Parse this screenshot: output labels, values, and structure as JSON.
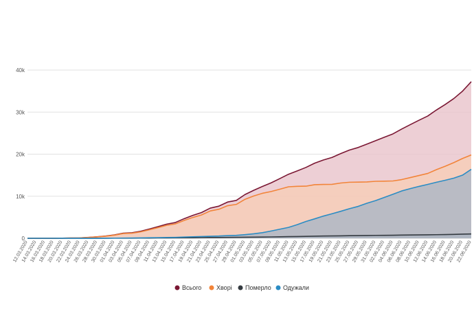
{
  "chart_data": {
    "type": "area",
    "title": "",
    "xlabel": "",
    "ylabel": "",
    "ylim": [
      0,
      40000
    ],
    "yticks": [
      {
        "value": 0,
        "label": "0"
      },
      {
        "value": 10000,
        "label": "10k"
      },
      {
        "value": 20000,
        "label": "20k"
      },
      {
        "value": 30000,
        "label": "30k"
      },
      {
        "value": 40000,
        "label": "40k"
      }
    ],
    "grid": true,
    "legend_position": "bottom-center",
    "x": [
      "12.03.2020",
      "14.03.2020",
      "16.03.2020",
      "18.03.2020",
      "20.03.2020",
      "22.03.2020",
      "24.03.2020",
      "26.03.2020",
      "28.03.2020",
      "30.03.2020",
      "01.04.2020",
      "03.04.2020",
      "05.04.2020",
      "07.04.2020",
      "09.04.2020",
      "11.04.2020",
      "13.04.2020",
      "15.04.2020",
      "17.04.2020",
      "19.04.2020",
      "21.04.2020",
      "23.04.2020",
      "25.04.2020",
      "27.04.2020",
      "29.04.2020",
      "01.05.2020",
      "03.05.2020",
      "05.05.2020",
      "07.05.2020",
      "09.05.2020",
      "11.05.2020",
      "13.05.2020",
      "15.05.2020",
      "17.05.2020",
      "19.05.2020",
      "21.05.2020",
      "23.05.2020",
      "25.05.2020",
      "27.05.2020",
      "29.05.2020",
      "31.05.2020",
      "02.06.2020",
      "04.06.2020",
      "06.06.2020",
      "08.06.2020",
      "10.06.2020",
      "12.06.2020",
      "14.06.2020",
      "16.06.2020",
      "18.06.2020",
      "20.06.2020",
      "22.06.2020"
    ],
    "series": [
      {
        "name": "Всього",
        "color": "#7a1733",
        "fill": "#e8c3cb",
        "values": [
          3,
          5,
          7,
          16,
          29,
          73,
          97,
          218,
          356,
          548,
          804,
          1225,
          1319,
          1668,
          2203,
          2777,
          3372,
          3764,
          4662,
          5449,
          6125,
          7170,
          7647,
          8617,
          9009,
          10406,
          11411,
          12331,
          13184,
          14195,
          15232,
          16023,
          16847,
          17858,
          18616,
          19230,
          20148,
          20986,
          21584,
          22382,
          23204,
          24012,
          24823,
          25964,
          27034,
          28077,
          29070,
          30506,
          31810,
          33234,
          34984,
          37241
        ]
      },
      {
        "name": "Хворі",
        "color": "#f28439",
        "fill": "#f6cdb7",
        "values": [
          3,
          5,
          7,
          15,
          26,
          67,
          89,
          204,
          330,
          506,
          742,
          1133,
          1217,
          1528,
          2016,
          2543,
          3082,
          3436,
          4243,
          4951,
          5553,
          6502,
          6905,
          7749,
          8058,
          9273,
          10061,
          10700,
          11119,
          11674,
          12247,
          12357,
          12391,
          12741,
          12802,
          12830,
          13143,
          13327,
          13356,
          13391,
          13551,
          13588,
          13634,
          13955,
          14442,
          14928,
          15421,
          16323,
          17127,
          17998,
          18985,
          19815
        ]
      },
      {
        "name": "Померло",
        "color": "#343a40",
        "fill": "#b8aeb2",
        "values": [
          0,
          0,
          0,
          0,
          0,
          2,
          3,
          5,
          10,
          13,
          20,
          32,
          37,
          45,
          58,
          83,
          98,
          108,
          125,
          141,
          161,
          187,
          201,
          220,
          239,
          261,
          279,
          291,
          327,
          361,
          391,
          425,
          456,
          497,
          535,
          564,
          588,
          617,
          644,
          669,
          696,
          710,
          728,
          757,
          780,
          808,
          830,
          856,
          891,
          935,
          987,
          1025
        ]
      },
      {
        "name": "Одужали",
        "color": "#2b8cc4",
        "fill": "#aab7c5",
        "values": [
          0,
          0,
          0,
          1,
          3,
          4,
          5,
          9,
          16,
          29,
          42,
          60,
          65,
          95,
          129,
          151,
          192,
          220,
          294,
          357,
          411,
          481,
          541,
          648,
          712,
          872,
          1071,
          1340,
          1738,
          2160,
          2594,
          3241,
          4000,
          4620,
          5279,
          5836,
          6417,
          7042,
          7584,
          8322,
          8957,
          9714,
          10461,
          11252,
          11812,
          12341,
          12819,
          13327,
          13792,
          14301,
          15012,
          16401
        ]
      }
    ]
  }
}
